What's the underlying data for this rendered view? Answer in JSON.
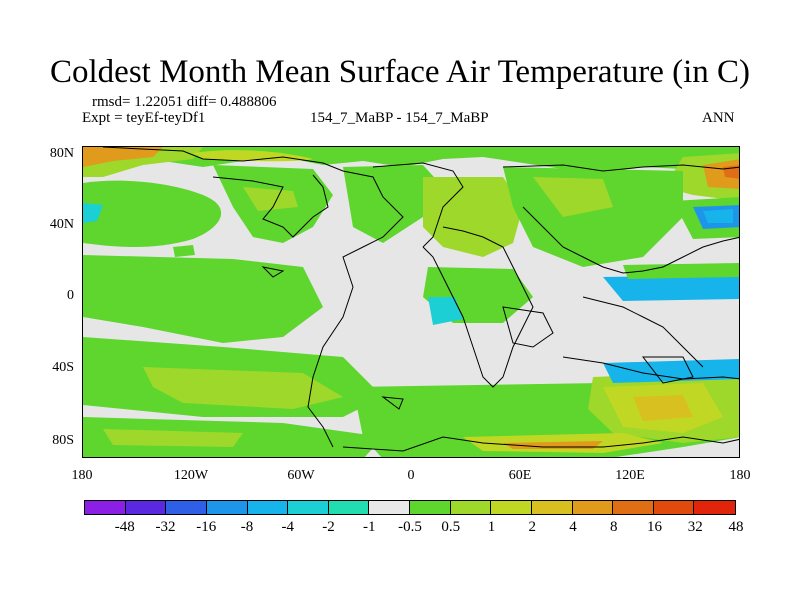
{
  "title": "Coldest Month Mean Surface Air Temperature (in C)",
  "stats": "rmsd= 1.22051 diff= 0.488806",
  "expt": "Expt = teyEf-teyDf1",
  "case": "154_7_MaBP - 154_7_MaBP",
  "season": "ANN",
  "y_labels": [
    "80N",
    "40N",
    "0",
    "40S",
    "80S"
  ],
  "x_labels": [
    "180",
    "120W",
    "60W",
    "0",
    "60E",
    "120E",
    "180"
  ],
  "colorbar": {
    "colors": [
      "#8c1fe6",
      "#5a28e0",
      "#2e5fe6",
      "#1e95e8",
      "#16b4ea",
      "#1ccfd4",
      "#22ddb0",
      "#e8e8e8",
      "#5ed62e",
      "#9ed82a",
      "#c0d824",
      "#d8c020",
      "#e09a1c",
      "#e06e14",
      "#e04a0c",
      "#e0250a"
    ],
    "labels": [
      "-48",
      "-32",
      "-16",
      "-8",
      "-4",
      "-2",
      "-1",
      "-0.5",
      "0.5",
      "1",
      "2",
      "4",
      "8",
      "16",
      "32",
      "48"
    ]
  }
}
